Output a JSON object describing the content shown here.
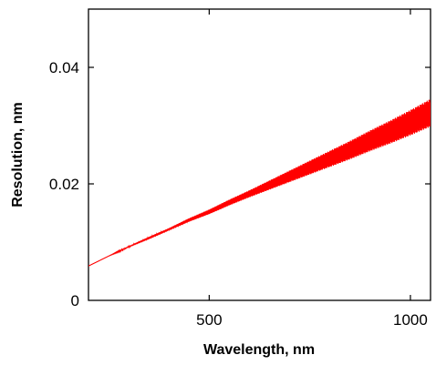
{
  "chart_data": {
    "type": "line",
    "title": "",
    "xlabel": "Wavelength, nm",
    "ylabel": "Resolution, nm",
    "xlim": [
      200,
      1050
    ],
    "ylim": [
      0,
      0.05
    ],
    "x_ticks": [
      500,
      1000
    ],
    "x_tick_labels": [
      "500",
      "1000"
    ],
    "y_ticks": [
      0,
      0.02,
      0.04
    ],
    "y_tick_labels": [
      "0",
      "0.02",
      "0.04"
    ],
    "grid": false,
    "legend": "none",
    "series": [
      {
        "color": "#ff0000",
        "x": [
          200,
          250,
          300,
          350,
          400,
          450,
          500,
          550,
          600,
          650,
          700,
          750,
          800,
          850,
          900,
          950,
          1000,
          1050
        ],
        "y": [
          0.0059,
          0.0076,
          0.0092,
          0.0107,
          0.0122,
          0.0138,
          0.0152,
          0.0168,
          0.0183,
          0.0198,
          0.0213,
          0.0228,
          0.0243,
          0.0258,
          0.0274,
          0.0289,
          0.0305,
          0.0322
        ],
        "oscillation_amplitude": [
          0.0,
          0.0,
          0.0001,
          0.0002,
          0.0002,
          0.0003,
          0.0004,
          0.0005,
          0.0006,
          0.0008,
          0.001,
          0.0012,
          0.0014,
          0.0016,
          0.0018,
          0.002,
          0.0022,
          0.0024
        ]
      }
    ]
  }
}
